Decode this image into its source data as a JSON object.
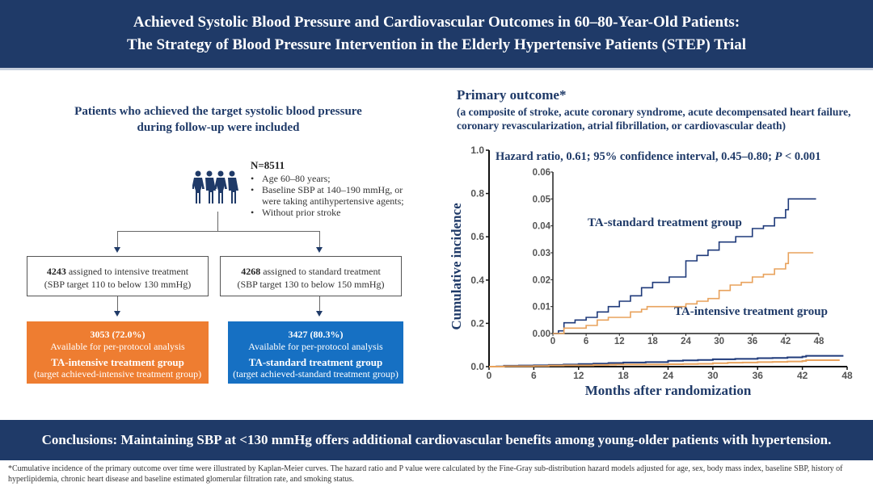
{
  "header": {
    "title_line1": "Achieved Systolic Blood Pressure and Cardiovascular Outcomes in 60–80-Year-Old Patients:",
    "title_line2": "The Strategy of Blood Pressure Intervention in the Elderly Hypertensive Patients (STEP) Trial"
  },
  "flow": {
    "title_line1": "Patients who achieved the target systolic blood pressure",
    "title_line2": "during follow-up were included",
    "people_icon": "group-of-people-icon",
    "n_label": "N=8511",
    "criteria": [
      "Age 60–80 years;",
      "Baseline SBP at 140–190 mmHg, or were taking antihypertensive agents;",
      "Without prior stroke"
    ],
    "intensive": {
      "count": "4243",
      "assigned_text": " assigned to intensive treatment",
      "target": "(SBP  target  110 to below 130 mmHg)",
      "available": "3053 (72.0%)",
      "available_text": "Available for per-protocol analysis",
      "group": "TA-intensive treatment group",
      "group_desc": "(target achieved-intensive treatment group)",
      "color": "#ee7d31"
    },
    "standard": {
      "count": "4268",
      "assigned_text": " assigned to standard treatment",
      "target": "(SBP target 130 to  below 150 mmHg)",
      "available": "3427 (80.3%)",
      "available_text": "Available for per-protocol analysis",
      "group": "TA-standard treatment group",
      "group_desc": "(target achieved-standard treatment group)",
      "color": "#1670c3"
    }
  },
  "outcome": {
    "title": "Primary outcome*",
    "subtitle": "(a composite of stroke, acute coronary syndrome, acute decompensated heart failure, coronary revascularization, atrial fibrillation, or cardiovascular death)"
  },
  "chart_data": [
    {
      "type": "line",
      "title": "Hazard ratio, 0.61; 95% confidence interval, 0.45–0.80; P < 0.001",
      "xlabel": "Months after randomization",
      "ylabel": "Cumulative incidence",
      "xlim": [
        0,
        48
      ],
      "ylim": [
        0,
        1.0
      ],
      "xticks": [
        "0",
        "6",
        "12",
        "18",
        "24",
        "30",
        "36",
        "42",
        "48"
      ],
      "yticks": [
        "0.0",
        "0.2",
        "0.4",
        "0.6",
        "0.8",
        "1.0"
      ],
      "grid": false,
      "series": [
        {
          "name": "TA-standard treatment group",
          "color": "#1f3a7a",
          "x": [
            0,
            1,
            2,
            4,
            6,
            8,
            10,
            12,
            14,
            16,
            18,
            21,
            24,
            26,
            28,
            30,
            33,
            36,
            38,
            40,
            42,
            42.5,
            47.5
          ],
          "y": [
            0,
            0.001,
            0.004,
            0.005,
            0.006,
            0.008,
            0.01,
            0.012,
            0.014,
            0.017,
            0.019,
            0.021,
            0.027,
            0.029,
            0.031,
            0.034,
            0.036,
            0.039,
            0.04,
            0.043,
            0.046,
            0.05,
            0.05
          ]
        },
        {
          "name": "TA-intensive treatment group",
          "color": "#e8a25c",
          "x": [
            0,
            2,
            4,
            6,
            8,
            10,
            12,
            14,
            16,
            17,
            20,
            24,
            26,
            28,
            30,
            32,
            34,
            36,
            38,
            40,
            42,
            42.5,
            47
          ],
          "y": [
            0,
            0.002,
            0.002,
            0.003,
            0.005,
            0.006,
            0.006,
            0.008,
            0.009,
            0.01,
            0.01,
            0.011,
            0.012,
            0.013,
            0.016,
            0.018,
            0.019,
            0.021,
            0.022,
            0.024,
            0.026,
            0.03,
            0.03
          ]
        }
      ]
    },
    {
      "type": "line",
      "title": "Inset (zoomed y-axis)",
      "xlim": [
        0,
        48
      ],
      "ylim": [
        0,
        0.06
      ],
      "xticks": [
        "0",
        "6",
        "12",
        "18",
        "24",
        "30",
        "36",
        "42",
        "48"
      ],
      "yticks": [
        "0.00",
        "0.01",
        "0.02",
        "0.03",
        "0.04",
        "0.05",
        "0.06"
      ],
      "annotations": [
        "TA-standard treatment group",
        "TA-intensive treatment group"
      ],
      "series_ref": "same as main chart"
    }
  ],
  "conclusion": "Conclusions: Maintaining SBP at <130 mmHg offers additional cardiovascular benefits among young-older patients with hypertension.",
  "footnote": "*Cumulative incidence of the primary outcome over time were illustrated by Kaplan-Meier curves. The hazard ratio and P value were calculated by the Fine-Gray sub-distribution hazard models adjusted for age, sex, body mass index, baseline SBP, history of hyperlipidemia, chronic heart disease and baseline estimated glomerular filtration rate, and smoking status."
}
